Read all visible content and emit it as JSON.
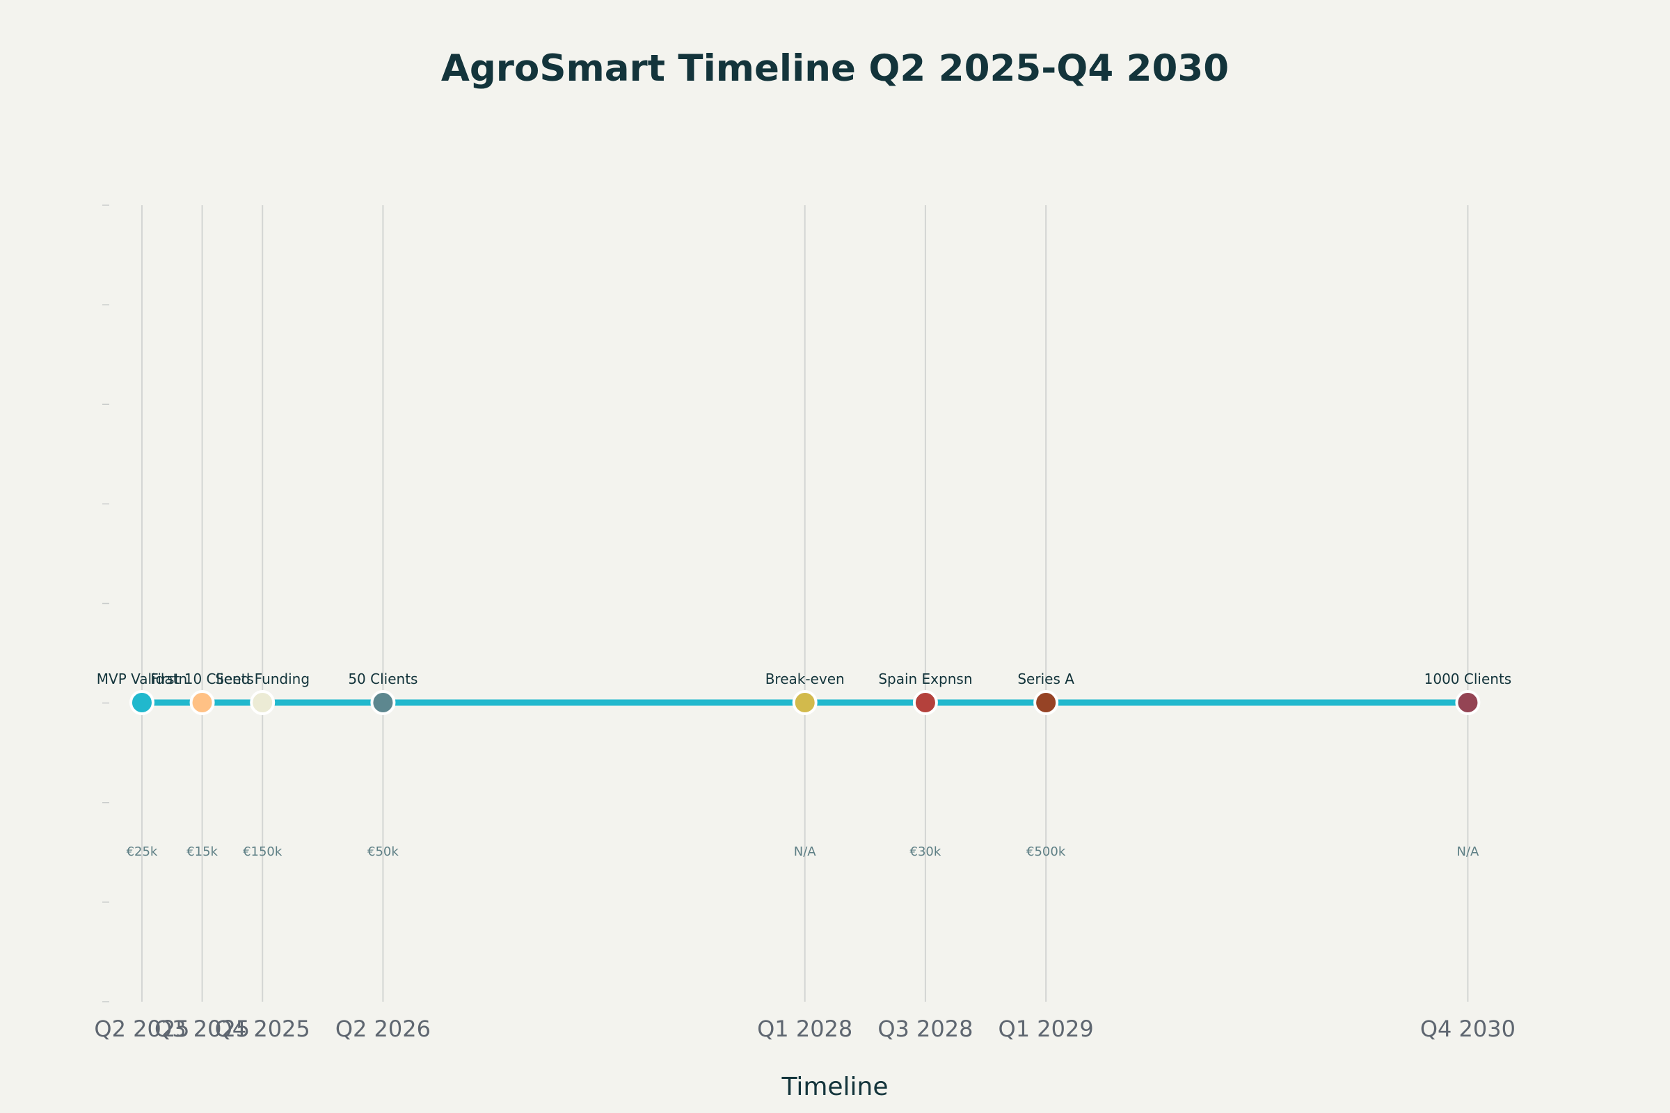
{
  "chart_data": {
    "type": "line",
    "title": "AgroSmart Timeline Q2 2025-Q4 2030",
    "xlabel": "Timeline",
    "ylabel": "",
    "grid": true,
    "legend": "none",
    "line_color": "#21B8CD",
    "x_quarter_index": [
      0,
      1,
      2,
      4,
      11,
      13,
      15,
      22
    ],
    "xlim": [
      -0.6,
      23.6
    ],
    "tick_labels": [
      "Q2 2025",
      "Q3 2025",
      "Q4 2025",
      "Q2 2026",
      "Q1 2028",
      "Q3 2028",
      "Q1 2029",
      "Q4 2030"
    ],
    "milestones": [
      "MVP Validatn",
      "First 10 Clients",
      "Seed Funding",
      "50 Clients",
      "Break-even",
      "Spain Expnsn",
      "Series A",
      "1000 Clients"
    ],
    "funding": [
      "€25k",
      "€15k",
      "€150k",
      "€50k",
      "N/A",
      "€30k",
      "€500k",
      "N/A"
    ],
    "colors": [
      "#21B8CD",
      "#FFC185",
      "#ECEBD5",
      "#5D878F",
      "#D2BA4C",
      "#B4413C",
      "#964325",
      "#944454"
    ]
  }
}
